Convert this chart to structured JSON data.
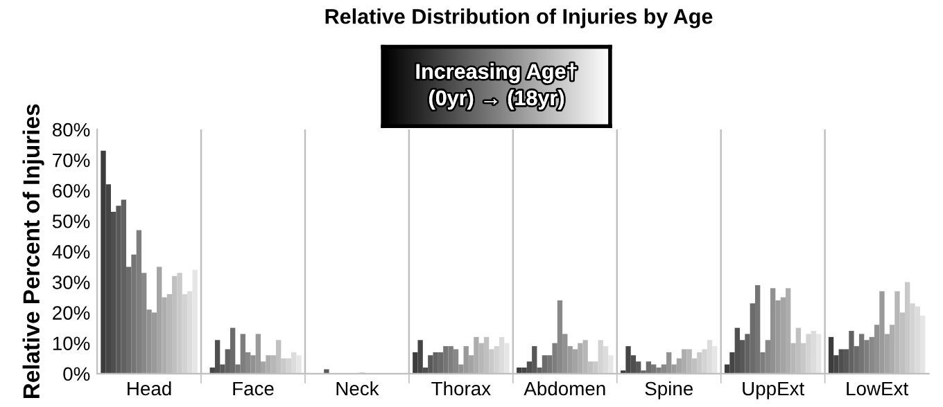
{
  "chart_data": {
    "type": "bar",
    "title": "Relative Distribution of Injuries by Age",
    "ylabel": "Relative Percent of Injuries",
    "categories": [
      "Head",
      "Face",
      "Neck",
      "Thorax",
      "Abdomen",
      "Spine",
      "UppExt",
      "LowExt"
    ],
    "series": [
      {
        "color": "#3c3c3c",
        "values": [
          73,
          0,
          0,
          7,
          2,
          1,
          3,
          12
        ]
      },
      {
        "color": "#454545",
        "values": [
          62,
          2,
          0,
          11,
          2,
          9,
          7,
          6
        ]
      },
      {
        "color": "#4f4f4f",
        "values": [
          53,
          11,
          0,
          2,
          4,
          6,
          15,
          8
        ]
      },
      {
        "color": "#585858",
        "values": [
          55,
          3,
          1.4,
          6,
          9,
          4,
          11,
          8
        ]
      },
      {
        "color": "#626262",
        "values": [
          57,
          8,
          0,
          7,
          2,
          1,
          13,
          14
        ]
      },
      {
        "color": "#6b6b6b",
        "values": [
          35,
          15,
          0,
          7,
          6,
          4,
          23,
          9
        ]
      },
      {
        "color": "#757575",
        "values": [
          39,
          3,
          0,
          9,
          6,
          3,
          29,
          13
        ]
      },
      {
        "color": "#7e7e7e",
        "values": [
          47,
          13,
          0,
          9,
          10,
          2,
          7,
          11
        ]
      },
      {
        "color": "#888888",
        "values": [
          33,
          7,
          0,
          8,
          24,
          3,
          11,
          12
        ]
      },
      {
        "color": "#919191",
        "values": [
          21,
          6,
          0,
          3,
          13,
          7,
          28,
          16
        ]
      },
      {
        "color": "#9a9a9a",
        "values": [
          20,
          13,
          0.3,
          9,
          9,
          3,
          24,
          27
        ]
      },
      {
        "color": "#a4a4a4",
        "values": [
          35,
          4,
          0,
          6,
          8,
          5,
          25,
          13
        ]
      },
      {
        "color": "#adadad",
        "values": [
          25,
          6,
          0,
          12,
          10,
          8,
          28,
          16
        ]
      },
      {
        "color": "#b7b7b7",
        "values": [
          26,
          6,
          0,
          10,
          11,
          8,
          10,
          27
        ]
      },
      {
        "color": "#c0c0c0",
        "values": [
          32,
          11,
          0,
          12,
          4,
          5,
          15,
          20
        ]
      },
      {
        "color": "#c9c9c9",
        "values": [
          33,
          5,
          0,
          8,
          4,
          7,
          10,
          30
        ]
      },
      {
        "color": "#d3d3d3",
        "values": [
          26,
          5,
          0,
          9,
          11,
          8,
          13,
          23
        ]
      },
      {
        "color": "#dcdcdc",
        "values": [
          27,
          7,
          0,
          12,
          9,
          11,
          14,
          22
        ]
      },
      {
        "color": "#e6e6e6",
        "values": [
          34,
          6,
          0,
          10,
          6,
          9,
          13,
          19
        ]
      }
    ],
    "ylim": [
      0,
      80
    ],
    "yticks": [
      {
        "value": 0,
        "label": "0%"
      },
      {
        "value": 10,
        "label": "10%"
      },
      {
        "value": 20,
        "label": "20%"
      },
      {
        "value": 30,
        "label": "30%"
      },
      {
        "value": 40,
        "label": "40%"
      },
      {
        "value": 50,
        "label": "50%"
      },
      {
        "value": 60,
        "label": "60%"
      },
      {
        "value": 70,
        "label": "70%"
      },
      {
        "value": 80,
        "label": "80%"
      }
    ],
    "grid": "x",
    "legend": false,
    "annotations": [
      "Increasing Age†",
      "(0yr) → (18yr)"
    ]
  }
}
